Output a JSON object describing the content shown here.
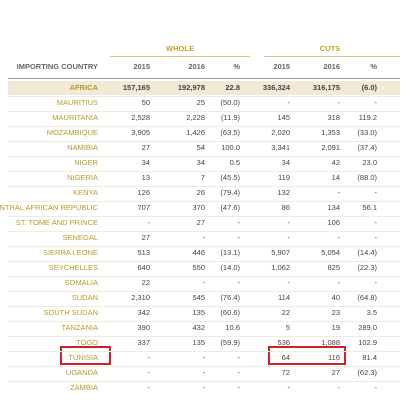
{
  "table": {
    "groups": [
      "WHOLE",
      "CUTS"
    ],
    "columns": [
      "IMPORTING COUNTRY",
      "2015",
      "2016",
      "%",
      "2015",
      "2016",
      "%"
    ],
    "rows": [
      [
        "AFRICA",
        "157,165",
        "192,978",
        "22.8",
        "336,324",
        "316,175",
        "(6.0)"
      ],
      [
        "MAURITIUS",
        "50",
        "25",
        "(50.0)",
        "-",
        "-",
        "-"
      ],
      [
        "MAURITANIA",
        "2,528",
        "2,228",
        "(11.9)",
        "145",
        "318",
        "119.2"
      ],
      [
        "MOZAMBIQUE",
        "3,905",
        "1,426",
        "(63.5)",
        "2,020",
        "1,353",
        "(33.0)"
      ],
      [
        "NAMIBIA",
        "27",
        "54",
        "100.0",
        "3,341",
        "2,091",
        "(37.4)"
      ],
      [
        "NIGER",
        "34",
        "34",
        "0.5",
        "34",
        "42",
        "23.0"
      ],
      [
        "NIGERIA",
        "13",
        "7",
        "(45.5)",
        "119",
        "14",
        "(88.0)"
      ],
      [
        "KENYA",
        "126",
        "26",
        "(79.4)",
        "132",
        "-",
        "-"
      ],
      [
        "CENTRAL AFRICAN REPUBLIC",
        "707",
        "370",
        "(47.6)",
        "86",
        "134",
        "56.1"
      ],
      [
        "ST. TOME AND PRINCE",
        "-",
        "27",
        "-",
        "-",
        "106",
        "-"
      ],
      [
        "SENEGAL",
        "27",
        "-",
        "-",
        "-",
        "-",
        "-"
      ],
      [
        "SIERRA LEONE",
        "513",
        "446",
        "(13.1)",
        "5,907",
        "5,054",
        "(14.4)"
      ],
      [
        "SEYCHELLES",
        "640",
        "550",
        "(14.0)",
        "1,062",
        "825",
        "(22.3)"
      ],
      [
        "SOMALIA",
        "22",
        "-",
        "-",
        "-",
        "-",
        "-"
      ],
      [
        "SUDAN",
        "2,310",
        "545",
        "(76.4)",
        "114",
        "40",
        "(64.8)"
      ],
      [
        "SOUTH SUDAN",
        "342",
        "135",
        "(60.6)",
        "22",
        "23",
        "3.5"
      ],
      [
        "TANZANIA",
        "390",
        "432",
        "10.6",
        "5",
        "19",
        "289.0"
      ],
      [
        "TOGO",
        "337",
        "135",
        "(59.9)",
        "536",
        "1,088",
        "102.9"
      ],
      [
        "TUNISIA",
        "-",
        "-",
        "-",
        "64",
        "116",
        "81.4"
      ],
      [
        "UGANDA",
        "-",
        "-",
        "-",
        "72",
        "27",
        "(62.3)"
      ],
      [
        "ZAMBIA",
        "-",
        "-",
        "-",
        "-",
        "-",
        "-"
      ]
    ]
  }
}
